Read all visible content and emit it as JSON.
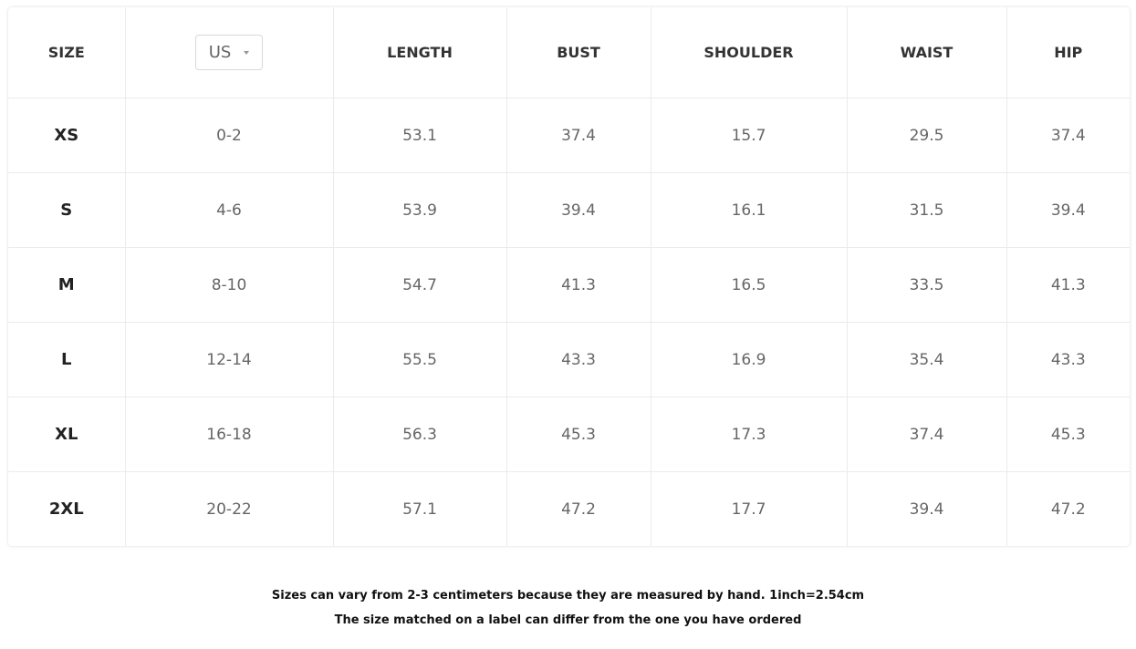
{
  "table": {
    "headers": {
      "size": "SIZE",
      "unit_select": "US",
      "length": "LENGTH",
      "bust": "BUST",
      "shoulder": "SHOULDER",
      "waist": "WAIST",
      "hip": "HIP"
    },
    "rows": [
      [
        "XS",
        "0-2",
        "53.1",
        "37.4",
        "15.7",
        "29.5",
        "37.4"
      ],
      [
        "S",
        "4-6",
        "53.9",
        "39.4",
        "16.1",
        "31.5",
        "39.4"
      ],
      [
        "M",
        "8-10",
        "54.7",
        "41.3",
        "16.5",
        "33.5",
        "41.3"
      ],
      [
        "L",
        "12-14",
        "55.5",
        "43.3",
        "16.9",
        "35.4",
        "43.3"
      ],
      [
        "XL",
        "16-18",
        "56.3",
        "45.3",
        "17.3",
        "37.4",
        "45.3"
      ],
      [
        "2XL",
        "20-22",
        "57.1",
        "47.2",
        "17.7",
        "39.4",
        "47.2"
      ]
    ]
  },
  "notes": [
    "Sizes can vary from 2-3 centimeters because they are measured by hand. 1inch=2.54cm",
    "The size matched on a label can differ from the one you have ordered"
  ]
}
